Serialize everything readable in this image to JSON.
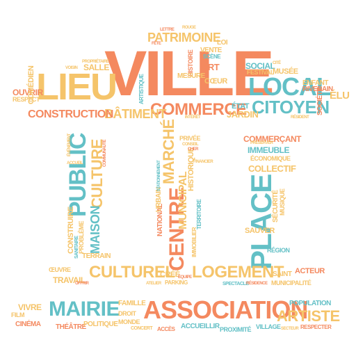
{
  "palette": {
    "orange": "#f4895f",
    "teal": "#63c0c6",
    "yellow": "#f5c46a"
  },
  "words": {
    "ville": "VILLE",
    "lieu": "LIEU",
    "local": "LOCAL",
    "citoyen": "CITOYEN",
    "commerce": "COMMERCE",
    "patrimoine": "PATRIMOINE",
    "batiment": "BÂTIMENT",
    "construction": "CONSTRUCTION",
    "ouvrir": "OUVRIR",
    "respect": "RESPECT",
    "comedien": "COMÉDIEN",
    "salle": "SALLE",
    "jardin": "JARDIN",
    "etat": "ÉTAT",
    "social": "SOCIAL",
    "festival": "FESTIVAL",
    "musee": "MUSÉE",
    "enfant": "ENFANT",
    "riverain": "RIVERAIN",
    "elu": "ÉLU",
    "societe": "SOCIÉTÉ",
    "art": "ART",
    "coeur": "CŒUR",
    "vente": "VENTE",
    "scene": "SCÈNE",
    "histoire": "HISTOIRE",
    "mesure": "MESURE",
    "loi": "LOI",
    "public": "PUBLIC",
    "culture": "CULTURE",
    "maison": "MAISON",
    "construire": "CONSTRUIRE",
    "probleme": "PROBLÈME",
    "sanitaire": "SANITAIRE",
    "terrain": "TERRAIN",
    "centre": "CENTRE",
    "marche": "MARCHÉ",
    "municipal": "MUNICIPAL",
    "historique": "HISTORIQUE",
    "national": "NATIONAL",
    "urbain": "URBAIN",
    "stationnement": "STATIONNEMENT",
    "place": "PLACE",
    "commercant": "COMMERÇANT",
    "immeuble": "IMMEUBLE",
    "economique": "ÉCONOMIQUE",
    "collectif": "COLLECTIF",
    "securite": "SÉCURITÉ",
    "musique": "MUSIQUE",
    "sauver": "SAUVER",
    "region": "RÉGION",
    "culturel": "CULTUREL",
    "logement": "LOGEMENT",
    "travail": "TRAVAIL",
    "oeuvre": "ŒUVRE",
    "cree": "CRÉÉ",
    "parking": "PARKING",
    "spectacle": "SPECTACLE",
    "saint": "SAINT",
    "acteur": "ACTEUR",
    "municipalite": "MUNICIPALITÉ",
    "mairie": "MAIRIE",
    "association": "ASSOCIATION",
    "artiste": "ARTISTE",
    "population": "POPULATION",
    "vivre": "VIVRE",
    "film": "FILM",
    "cinema": "CINÉMA",
    "theatre": "THÉÂTRE",
    "politique": "POLITIQUE",
    "famille": "FAMILLE",
    "droit": "DROIT",
    "monde": "MONDE",
    "concert": "CONCERT",
    "acces": "ACCÈS",
    "accueillir": "ACCUEILLIR",
    "proximite": "PROXIMITÉ",
    "village": "VILLAGE",
    "respecter": "RESPECTER",
    "privee": "PRIVÉE",
    "conseil": "CONSEIL",
    "accueil": "ACCUEIL",
    "residence": "RÉSIDENCE",
    "interet": "INTÉRÊT",
    "lettre": "LETTRE",
    "rouge": "ROUGE",
    "fete": "FÊTE",
    "patron": "PATRON",
    "proprietaire": "PROPRIÉTAIRE",
    "voisin": "VOISIN",
    "lyon": "LYON",
    "fut": "FUT",
    "auteur": "AUTEUR",
    "cite": "CITÉ",
    "etudiant": "ÉTUDIANT",
    "ministre": "MINISTRE",
    "representation": "REPRÉSENTATION",
    "artistique": "ARTISTIQUE",
    "responsable": "RESPONSABLE",
    "evenement": "ÉVÉNEMENT",
    "communaute": "COMMUNAUTÉ",
    "territoire": "TERRITOIRE",
    "immobilier": "IMMOBILIER",
    "cher": "CHER",
    "financier": "FINANCIER",
    "secteur": "SECTEUR",
    "equipe": "ÉQUIPE",
    "atelier": "ATELIER",
    "offrir": "OFFRIR",
    "organiser": "ORGANISER",
    "cours": "COURS",
    "preserver": "PRÉSERVER",
    "hopital": "HÔPITAL",
    "nature": "NATURE",
    "resident": "RÉSIDENT",
    "jeune": "JEUNE",
    "gestion": "GESTION",
    "architecte": "ARCHITECTE",
    "religieux": "RELIGIEUX",
    "retenir": "RETENIR",
    "soutenir": "SOUTENIR",
    "recevoir": "RECEVOIR",
    "protection": "PROTECTION",
    "ensemble": "ENSEMBLE",
    "ouvert": "OUVERT",
    "service": "SERVICE",
    "droite": "DROITE",
    "nouveau": "NOUVEAU",
    "quartier": "QUARTIER",
    "public_b": "PUBLIC",
    "elu_b": "ÉLU",
    "vie": "VIE",
    "bien": "BIEN",
    "travaux": "TRAVAUX",
    "tourisme": "TOURISME",
    "habitant": "HABITANT"
  }
}
